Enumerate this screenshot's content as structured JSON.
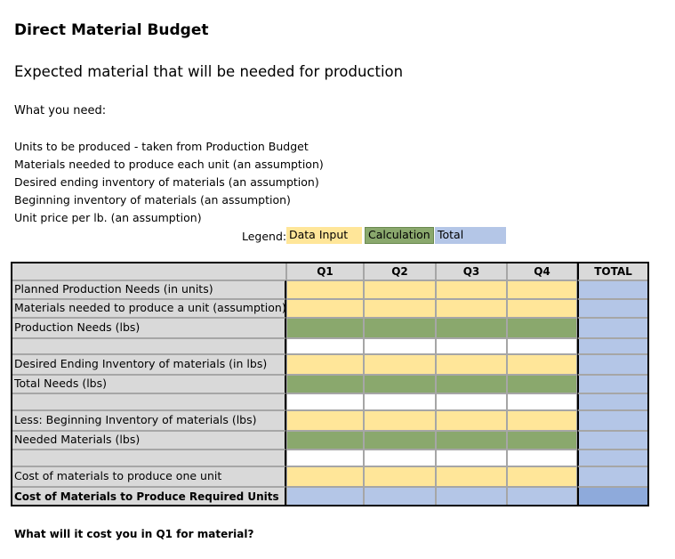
{
  "title": "Direct Material Budget",
  "subtitle": "Expected material that will be needed for production",
  "needs_heading": "What you need:",
  "needs": [
    "Units to be produced - taken from Production Budget",
    "Materials needed to produce each unit (an assumption)",
    "Desired ending inventory of materials (an assumption)",
    "Beginning inventory of materials (an assumption)",
    "Unit price per lb. (an assumption)"
  ],
  "legend": {
    "label": "Legend:",
    "items": [
      "Data Input",
      "Calculation",
      "Total"
    ]
  },
  "table": {
    "header": [
      "Q1",
      "Q2",
      "Q3",
      "Q4",
      "TOTAL"
    ],
    "rows": [
      "Planned Production Needs (in units)",
      "Materials needed to produce a unit (assumption)",
      "Production Needs (lbs)",
      null,
      "Desired Ending Inventory of materials (in lbs)",
      "Total Needs (lbs)",
      null,
      "Less: Beginning Inventory of materials (lbs)",
      "Needed Materials (lbs)",
      null,
      "Cost of materials to produce one unit",
      "Cost of Materials to Produce Required Units"
    ]
  },
  "question": "What will it cost you in Q1 for material?"
}
